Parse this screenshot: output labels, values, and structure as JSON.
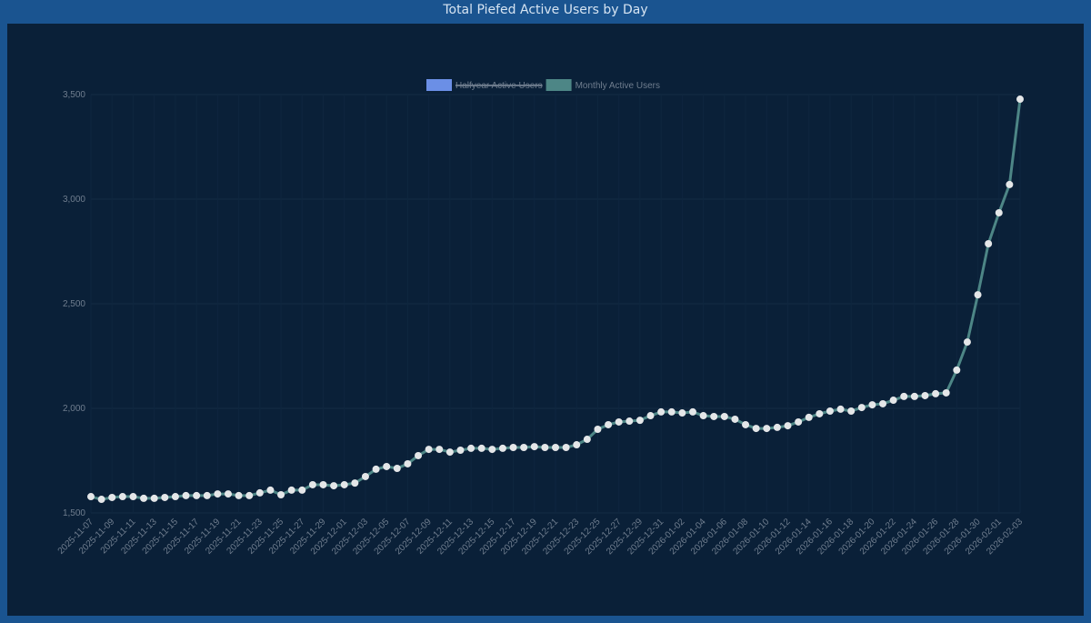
{
  "chart_data": {
    "type": "line",
    "title": "Total Piefed Active Users by Day",
    "legend": [
      {
        "name": "Halfyear Active Users",
        "color": "#6b8fe6",
        "hidden": true
      },
      {
        "name": "Monthly Active Users",
        "color": "#4d8686",
        "hidden": false
      }
    ],
    "x": [
      "2025-11-07",
      null,
      "2025-11-09",
      null,
      "2025-11-11",
      null,
      "2025-11-13",
      null,
      "2025-11-15",
      null,
      "2025-11-17",
      null,
      "2025-11-19",
      null,
      "2025-11-21",
      null,
      "2025-11-23",
      null,
      "2025-11-25",
      null,
      "2025-11-27",
      null,
      "2025-11-29",
      null,
      "2025-12-01",
      null,
      "2025-12-03",
      null,
      "2025-12-05",
      null,
      "2025-12-07",
      null,
      "2025-12-09",
      null,
      "2025-12-11",
      null,
      "2025-12-13",
      null,
      "2025-12-15",
      null,
      "2025-12-17",
      null,
      "2025-12-19",
      null,
      "2025-12-21",
      null,
      "2025-12-23",
      null,
      "2025-12-25",
      null,
      "2025-12-27",
      null,
      "2025-12-29",
      null,
      "2025-12-31",
      null,
      "2026-01-02",
      null,
      "2026-01-04",
      null,
      "2026-01-06",
      null,
      "2026-01-08",
      null,
      "2026-01-10",
      null,
      "2026-01-12",
      null,
      "2026-01-14",
      null,
      "2026-01-16",
      null,
      "2026-01-18",
      null,
      "2026-01-20",
      null,
      "2026-01-22",
      null,
      "2026-01-24",
      null,
      "2026-01-26",
      null,
      "2026-01-28",
      null,
      "2026-01-30",
      null,
      "2026-02-01",
      null,
      "2026-02-03"
    ],
    "series": [
      {
        "name": "Monthly Active Users",
        "color": "#4d8686",
        "point_color": "#e4e6e8",
        "values": [
          1578,
          1565,
          1574,
          1578,
          1578,
          1570,
          1570,
          1574,
          1578,
          1583,
          1583,
          1583,
          1591,
          1591,
          1583,
          1583,
          1596,
          1609,
          1587,
          1609,
          1609,
          1635,
          1635,
          1630,
          1635,
          1643,
          1674,
          1709,
          1722,
          1713,
          1735,
          1774,
          1804,
          1804,
          1791,
          1800,
          1809,
          1809,
          1804,
          1809,
          1813,
          1813,
          1817,
          1813,
          1813,
          1813,
          1826,
          1852,
          1900,
          1922,
          1935,
          1939,
          1943,
          1965,
          1983,
          1983,
          1978,
          1983,
          1965,
          1961,
          1961,
          1948,
          1922,
          1904,
          1904,
          1909,
          1917,
          1935,
          1957,
          1974,
          1987,
          1996,
          1987,
          2004,
          2017,
          2022,
          2039,
          2057,
          2057,
          2061,
          2070,
          2074,
          2183,
          2317,
          2543,
          2787,
          2935,
          3070,
          3478
        ]
      }
    ],
    "ylim": [
      1500,
      3500
    ],
    "yticks": [
      {
        "value": 1500,
        "label": "1,500"
      },
      {
        "value": 2000,
        "label": "2,000"
      },
      {
        "value": 2500,
        "label": "2,500"
      },
      {
        "value": 3000,
        "label": "3,000"
      },
      {
        "value": 3500,
        "label": "3,500"
      }
    ],
    "grid": true
  }
}
